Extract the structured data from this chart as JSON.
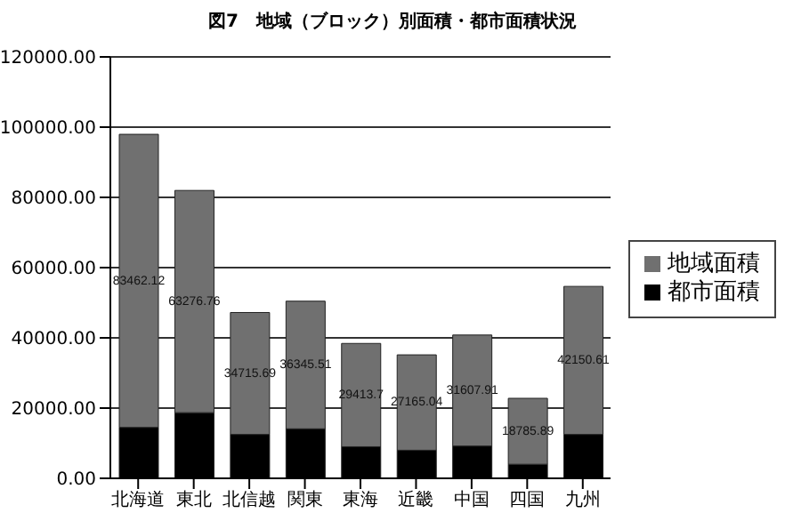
{
  "chart_data": {
    "type": "bar",
    "stacked": true,
    "title": "図7　地域（ブロック）別面積・都市面積状況",
    "categories": [
      "北海道",
      "東北",
      "北信越",
      "関東",
      "東海",
      "近畿",
      "中国",
      "四国",
      "九州"
    ],
    "series": [
      {
        "name": "都市面積",
        "color": "#000000",
        "values": [
          14500,
          18700,
          12500,
          14100,
          9000,
          8000,
          9200,
          4000,
          12500
        ]
      },
      {
        "name": "地域面積",
        "color": "#707070",
        "values": [
          83462.12,
          63276.76,
          34715.69,
          36345.51,
          29413.7,
          27165.04,
          31607.91,
          18785.89,
          42150.61
        ],
        "value_labels": [
          "83462.12",
          "63276.76",
          "34715.69",
          "36345.51",
          "29413.7",
          "27165.04",
          "31607.91",
          "18785.89",
          "42150.61"
        ]
      }
    ],
    "ylim": [
      0,
      120000
    ],
    "yticks": [
      {
        "value": 0,
        "label": "0.00"
      },
      {
        "value": 20000,
        "label": "20000.00"
      },
      {
        "value": 40000,
        "label": "40000.00"
      },
      {
        "value": 60000,
        "label": "60000.00"
      },
      {
        "value": 80000,
        "label": "80000.00"
      },
      {
        "value": 100000,
        "label": "100000.00"
      },
      {
        "value": 120000,
        "label": "120000.00"
      }
    ],
    "grid": "y",
    "legend": "right"
  }
}
